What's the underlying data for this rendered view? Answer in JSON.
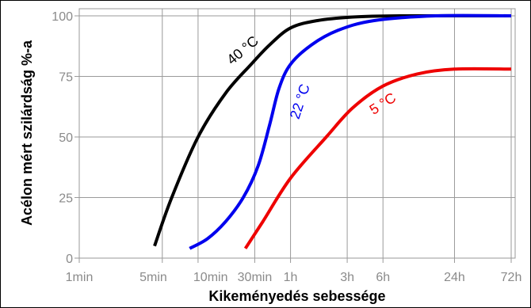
{
  "chart_data": {
    "type": "line",
    "xlabel": "Kikeményedés sebessége",
    "ylabel": "Acélon mért szilárdság %-a",
    "x_scale": "log",
    "x_unit": "min",
    "xlim": [
      1,
      4320
    ],
    "ylim": [
      0,
      100
    ],
    "x_ticks": [
      {
        "label": "1min",
        "value": 1
      },
      {
        "label": "5min",
        "value": 5
      },
      {
        "label": "10min",
        "value": 10
      },
      {
        "label": "30min",
        "value": 30
      },
      {
        "label": "1h",
        "value": 60
      },
      {
        "label": "3h",
        "value": 180
      },
      {
        "label": "6h",
        "value": 360
      },
      {
        "label": "24h",
        "value": 1440
      },
      {
        "label": "72h",
        "value": 4320
      }
    ],
    "y_ticks": [
      0,
      25,
      50,
      75,
      100
    ],
    "grid": true,
    "series": [
      {
        "name": "40 °C",
        "color": "#000000",
        "points": [
          [
            4.3,
            5
          ],
          [
            6,
            25
          ],
          [
            10,
            50
          ],
          [
            17,
            68
          ],
          [
            28,
            80
          ],
          [
            40,
            88
          ],
          [
            60,
            95
          ],
          [
            100,
            98
          ],
          [
            200,
            99.5
          ],
          [
            500,
            100
          ],
          [
            4320,
            100
          ]
        ]
      },
      {
        "name": "22 °C",
        "color": "#0000ee",
        "points": [
          [
            8.5,
            4
          ],
          [
            12,
            8
          ],
          [
            17,
            15
          ],
          [
            24,
            25
          ],
          [
            32,
            38
          ],
          [
            40,
            55
          ],
          [
            48,
            70
          ],
          [
            60,
            80
          ],
          [
            90,
            88
          ],
          [
            150,
            94
          ],
          [
            300,
            98
          ],
          [
            1000,
            100
          ],
          [
            4320,
            100
          ]
        ]
      },
      {
        "name": "5 °C",
        "color": "#ee0000",
        "points": [
          [
            25,
            4
          ],
          [
            35,
            15
          ],
          [
            60,
            33
          ],
          [
            120,
            50
          ],
          [
            200,
            62
          ],
          [
            360,
            71
          ],
          [
            700,
            76
          ],
          [
            1440,
            78
          ],
          [
            4320,
            78
          ]
        ]
      }
    ],
    "series_labels": [
      "40 °C",
      "22 °C",
      "5 °C"
    ]
  }
}
